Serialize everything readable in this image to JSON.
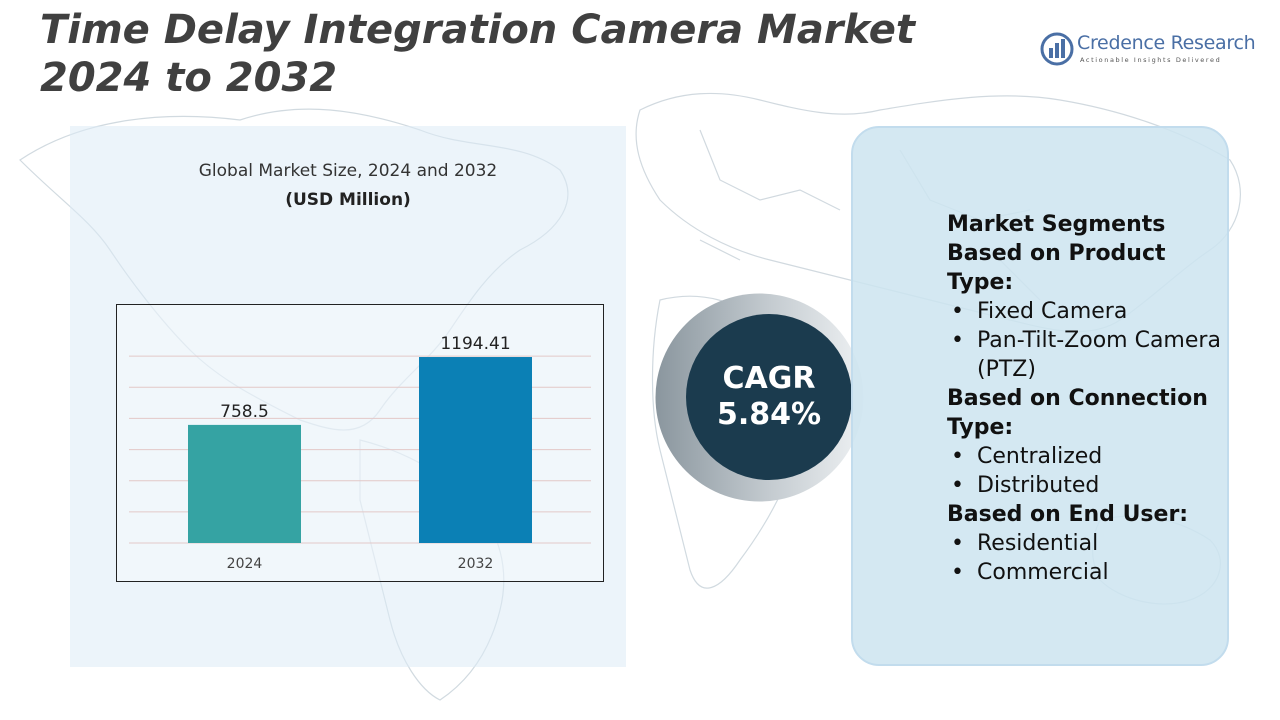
{
  "title": "Time Delay Integration Camera Market 2024 to 2032",
  "logo": {
    "name": "Credence Research",
    "tagline": "Actionable Insights Delivered"
  },
  "chart_data": {
    "type": "bar",
    "title": "Global Market Size, 2024 and 2032",
    "subtitle": "(USD Million)",
    "categories": [
      "2024",
      "2032"
    ],
    "values": [
      758.5,
      1194.41
    ],
    "value_labels": [
      "758.5",
      "1194.41"
    ],
    "bar_colors": [
      "#35a3a3",
      "#0b80b5"
    ],
    "grid": true,
    "ylim": [
      0,
      1400
    ]
  },
  "cagr": {
    "label": "CAGR",
    "value": "5.84%"
  },
  "segments": {
    "heading": "Market Segments",
    "groups": [
      {
        "title": "Based on Product Type:",
        "items": [
          "Fixed Camera",
          "Pan-Tilt-Zoom Camera (PTZ)"
        ]
      },
      {
        "title": "Based on Connection Type:",
        "items": [
          "Centralized",
          "Distributed"
        ]
      },
      {
        "title": "Based on End User:",
        "items": [
          "Residential",
          "Commercial"
        ]
      }
    ]
  },
  "colors": {
    "title": "#404040",
    "cagr_bg": "#1b3b4e",
    "panel_bg": "#cde4f0",
    "logo": "#4a6fa5"
  }
}
